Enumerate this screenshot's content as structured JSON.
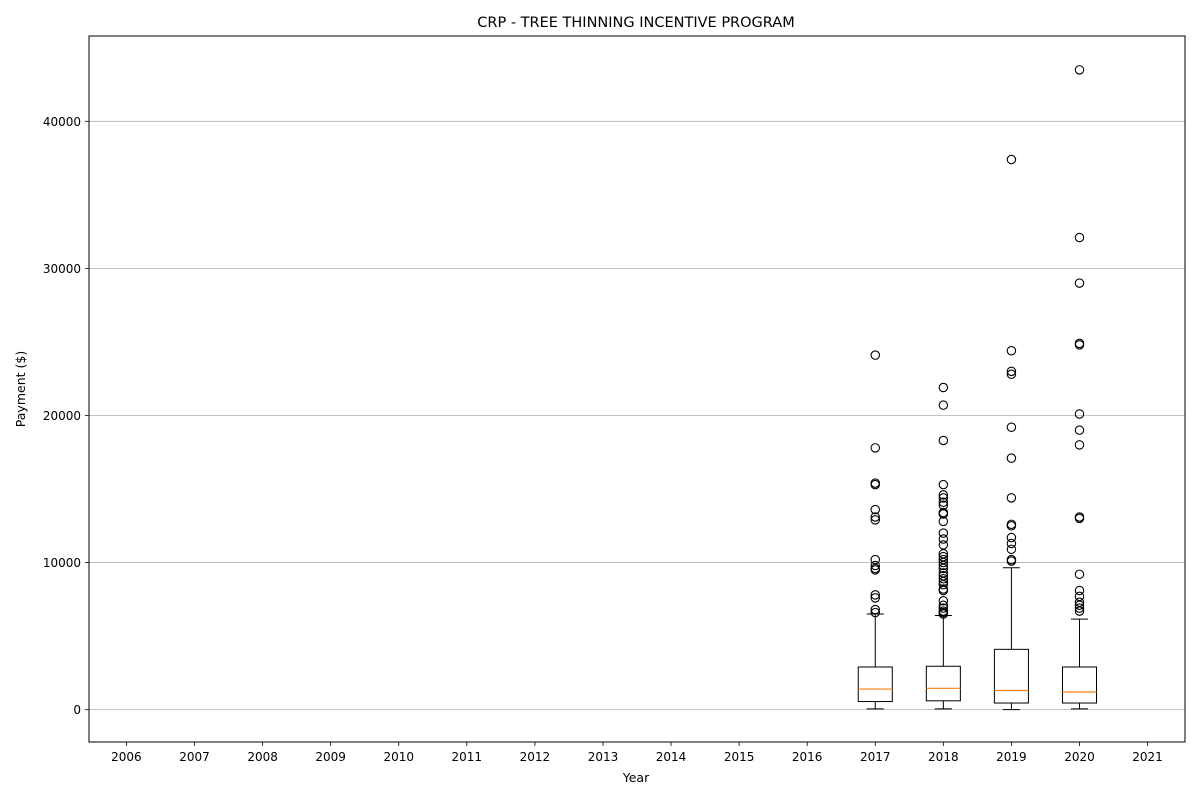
{
  "chart_data": {
    "type": "box",
    "title": "CRP - TREE THINNING INCENTIVE PROGRAM",
    "xlabel": "Year",
    "ylabel": "Payment ($)",
    "categories": [
      "2006",
      "2007",
      "2008",
      "2009",
      "2010",
      "2011",
      "2012",
      "2013",
      "2014",
      "2015",
      "2016",
      "2017",
      "2018",
      "2019",
      "2020",
      "2021"
    ],
    "ylim": [
      -2200,
      45800
    ],
    "yticks": [
      0,
      10000,
      20000,
      30000,
      40000
    ],
    "ytick_labels": [
      "0",
      "10000",
      "20000",
      "30000",
      "40000"
    ],
    "grid": "horizontal",
    "boxes": [
      {
        "category": "2017",
        "whisker_low": 50,
        "q1": 550,
        "median": 1400,
        "q3": 2900,
        "whisker_high": 6500,
        "outliers": [
          24100,
          17800,
          15400,
          15300,
          13600,
          13100,
          12900,
          10200,
          9800,
          9600,
          9500,
          7800,
          7600,
          6800,
          6600
        ]
      },
      {
        "category": "2018",
        "whisker_low": 50,
        "q1": 600,
        "median": 1450,
        "q3": 2950,
        "whisker_high": 6400,
        "outliers": [
          21900,
          20700,
          18300,
          15300,
          14600,
          14400,
          14100,
          13900,
          13400,
          13300,
          12800,
          12000,
          11600,
          11200,
          10600,
          10400,
          10200,
          10000,
          9800,
          9600,
          9300,
          9100,
          8900,
          8700,
          8500,
          8200,
          8100,
          7400,
          7100,
          6900,
          6700,
          6600,
          6500
        ]
      },
      {
        "category": "2019",
        "whisker_low": 0,
        "q1": 450,
        "median": 1300,
        "q3": 4100,
        "whisker_high": 9650,
        "outliers": [
          37400,
          24400,
          23000,
          22800,
          19200,
          17100,
          14400,
          12600,
          12500,
          11700,
          11300,
          10900,
          10200,
          10100
        ]
      },
      {
        "category": "2020",
        "whisker_low": 50,
        "q1": 450,
        "median": 1200,
        "q3": 2900,
        "whisker_high": 6150,
        "outliers": [
          43500,
          32100,
          29000,
          24900,
          24800,
          20100,
          19000,
          18000,
          13100,
          13000,
          9200,
          8100,
          7700,
          7300,
          7100,
          6900,
          6700
        ]
      }
    ],
    "colors": {
      "box": "#000000",
      "median": "#ff7f0e",
      "grid": "#b0b0b0",
      "outlier_edge": "#000000"
    }
  }
}
